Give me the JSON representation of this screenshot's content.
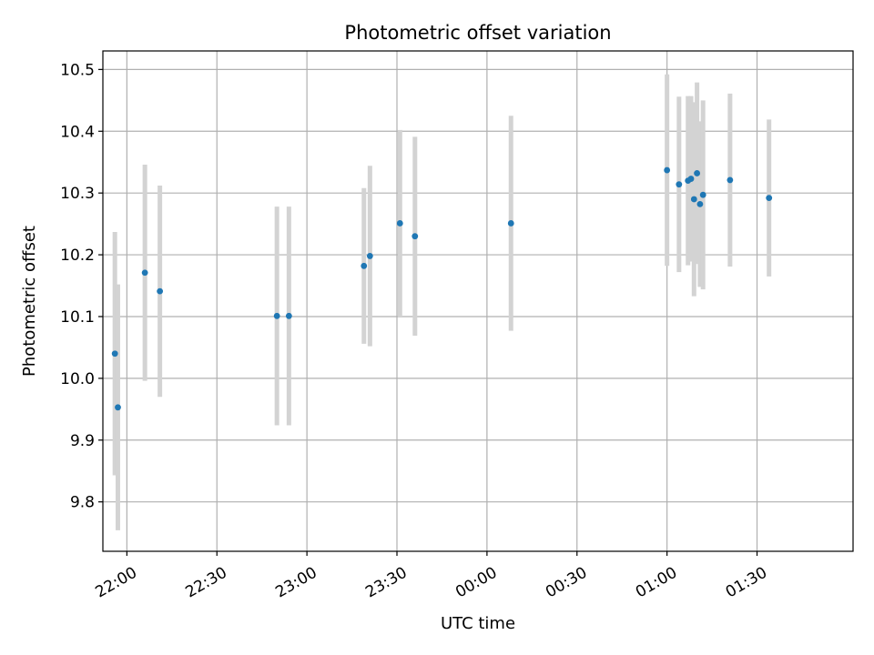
{
  "chart_data": {
    "type": "scatter",
    "title": "Photometric offset variation",
    "xlabel": "UTC time",
    "ylabel": "Photometric offset",
    "xlim": [
      "21:52",
      "02:02"
    ],
    "ylim": [
      9.72,
      10.53
    ],
    "x_ticks": [
      "22:00",
      "22:30",
      "23:00",
      "23:30",
      "00:00",
      "00:30",
      "01:00",
      "01:30"
    ],
    "y_ticks": [
      "9.8",
      "9.9",
      "10.0",
      "10.1",
      "10.2",
      "10.3",
      "10.4",
      "10.5"
    ],
    "grid": true,
    "colors": {
      "point": "#1f77b4",
      "errorbar": "#d3d3d3",
      "grid": "#b0b0b0"
    },
    "points": [
      {
        "time": "21:56",
        "y": 10.04,
        "err": 0.197
      },
      {
        "time": "21:57",
        "y": 9.953,
        "err": 0.199
      },
      {
        "time": "22:06",
        "y": 10.171,
        "err": 0.175
      },
      {
        "time": "22:11",
        "y": 10.141,
        "err": 0.171
      },
      {
        "time": "22:50",
        "y": 10.101,
        "err": 0.177
      },
      {
        "time": "22:54",
        "y": 10.101,
        "err": 0.177
      },
      {
        "time": "23:19",
        "y": 10.182,
        "err": 0.126
      },
      {
        "time": "23:21",
        "y": 10.198,
        "err": 0.146
      },
      {
        "time": "23:31",
        "y": 10.251,
        "err": 0.151
      },
      {
        "time": "23:36",
        "y": 10.23,
        "err": 0.161
      },
      {
        "time": "00:08",
        "y": 10.251,
        "err": 0.174
      },
      {
        "time": "01:00",
        "y": 10.337,
        "err": 0.155
      },
      {
        "time": "01:04",
        "y": 10.314,
        "err": 0.142
      },
      {
        "time": "01:07",
        "y": 10.32,
        "err": 0.137
      },
      {
        "time": "01:08",
        "y": 10.323,
        "err": 0.134
      },
      {
        "time": "01:09",
        "y": 10.29,
        "err": 0.157
      },
      {
        "time": "01:10",
        "y": 10.332,
        "err": 0.147
      },
      {
        "time": "01:11",
        "y": 10.282,
        "err": 0.134
      },
      {
        "time": "01:12",
        "y": 10.297,
        "err": 0.153
      },
      {
        "time": "01:21",
        "y": 10.321,
        "err": 0.14
      },
      {
        "time": "01:34",
        "y": 10.292,
        "err": 0.127
      }
    ]
  }
}
